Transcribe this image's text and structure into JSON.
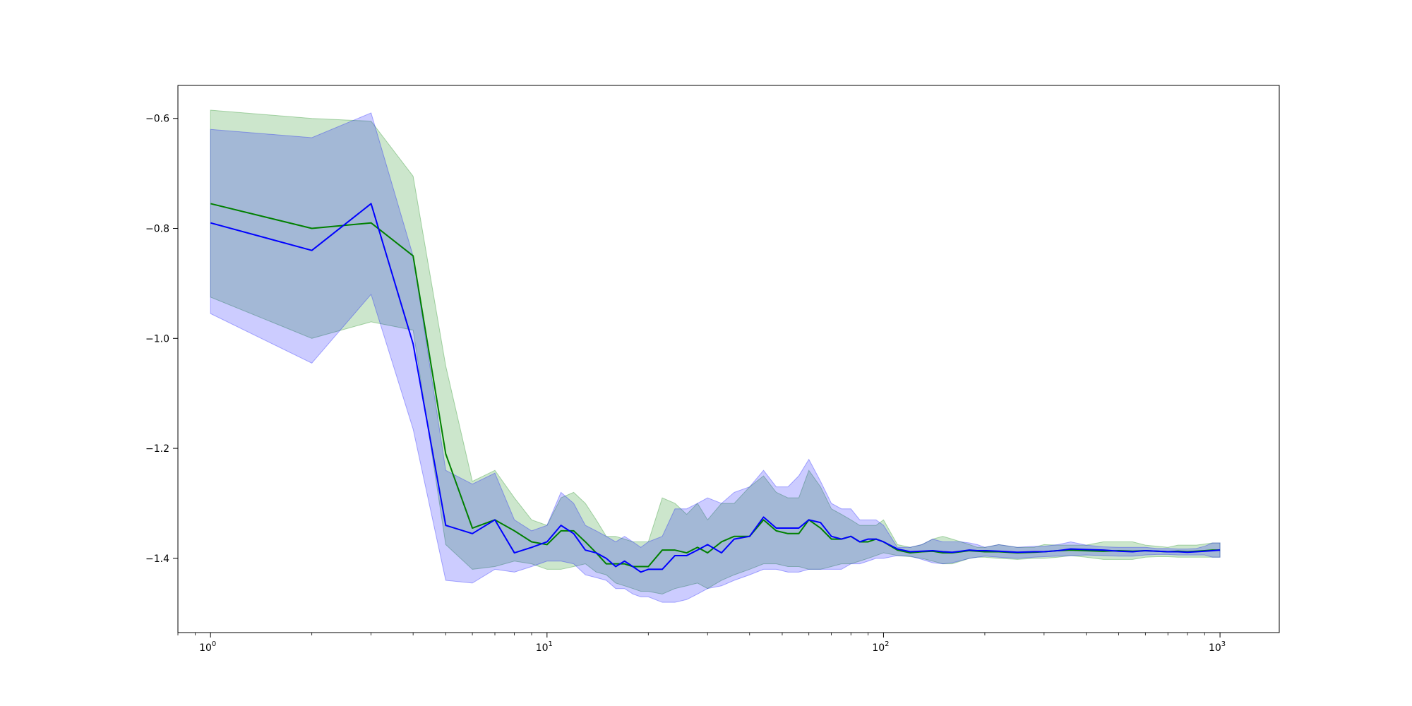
{
  "chart_data": {
    "type": "line",
    "title": "",
    "xlabel": "",
    "ylabel": "",
    "xscale": "log",
    "xlim": [
      0.8,
      1500
    ],
    "ylim": [
      -1.535,
      -0.54
    ],
    "grid": false,
    "xticks": [
      {
        "value": 1,
        "base": "10",
        "exp": "0"
      },
      {
        "value": 10,
        "base": "10",
        "exp": "1"
      },
      {
        "value": 100,
        "base": "10",
        "exp": "2"
      },
      {
        "value": 1000,
        "base": "10",
        "exp": "3"
      }
    ],
    "yticks": [
      {
        "value": -0.6,
        "label": "−0.6"
      },
      {
        "value": -0.8,
        "label": "−0.8"
      },
      {
        "value": -1.0,
        "label": "−1.0"
      },
      {
        "value": -1.2,
        "label": "−1.2"
      },
      {
        "value": -1.4,
        "label": "−1.4"
      }
    ],
    "series": [
      {
        "color": "#008000",
        "band_color": "#008000",
        "band_opacity": 0.2,
        "x": [
          1,
          2,
          3,
          4,
          5,
          6,
          7,
          8,
          9,
          10,
          11,
          12,
          13,
          14,
          15,
          16,
          17,
          18,
          19,
          20,
          22,
          24,
          26,
          28,
          30,
          33,
          36,
          40,
          44,
          48,
          52,
          56,
          60,
          65,
          70,
          75,
          80,
          85,
          90,
          95,
          100,
          110,
          120,
          130,
          140,
          150,
          160,
          170,
          180,
          190,
          200,
          220,
          250,
          280,
          300,
          330,
          360,
          400,
          450,
          500,
          550,
          600,
          650,
          700,
          750,
          800,
          850,
          900,
          950,
          1000
        ],
        "y": [
          -0.755,
          -0.8,
          -0.79,
          -0.85,
          -1.21,
          -1.345,
          -1.33,
          -1.35,
          -1.37,
          -1.375,
          -1.35,
          -1.35,
          -1.37,
          -1.39,
          -1.41,
          -1.41,
          -1.41,
          -1.415,
          -1.415,
          -1.415,
          -1.385,
          -1.385,
          -1.39,
          -1.38,
          -1.39,
          -1.37,
          -1.36,
          -1.36,
          -1.33,
          -1.35,
          -1.355,
          -1.355,
          -1.33,
          -1.345,
          -1.365,
          -1.365,
          -1.36,
          -1.37,
          -1.37,
          -1.365,
          -1.37,
          -1.385,
          -1.39,
          -1.388,
          -1.387,
          -1.39,
          -1.39,
          -1.388,
          -1.386,
          -1.387,
          -1.388,
          -1.388,
          -1.39,
          -1.389,
          -1.388,
          -1.386,
          -1.385,
          -1.386,
          -1.387,
          -1.386,
          -1.387,
          -1.386,
          -1.387,
          -1.388,
          -1.387,
          -1.388,
          -1.387,
          -1.386,
          -1.385,
          -1.385
        ],
        "y_upper": [
          -0.585,
          -0.6,
          -0.605,
          -0.705,
          -1.05,
          -1.26,
          -1.24,
          -1.29,
          -1.33,
          -1.34,
          -1.29,
          -1.28,
          -1.3,
          -1.33,
          -1.36,
          -1.36,
          -1.365,
          -1.37,
          -1.37,
          -1.37,
          -1.29,
          -1.3,
          -1.32,
          -1.3,
          -1.33,
          -1.3,
          -1.3,
          -1.27,
          -1.25,
          -1.28,
          -1.29,
          -1.29,
          -1.24,
          -1.27,
          -1.31,
          -1.32,
          -1.33,
          -1.34,
          -1.34,
          -1.34,
          -1.33,
          -1.375,
          -1.38,
          -1.375,
          -1.365,
          -1.36,
          -1.365,
          -1.37,
          -1.375,
          -1.38,
          -1.38,
          -1.375,
          -1.38,
          -1.38,
          -1.375,
          -1.376,
          -1.376,
          -1.376,
          -1.37,
          -1.37,
          -1.37,
          -1.376,
          -1.378,
          -1.38,
          -1.376,
          -1.376,
          -1.376,
          -1.374,
          -1.372,
          -1.372
        ],
        "y_lower": [
          -0.925,
          -1.0,
          -0.97,
          -0.985,
          -1.375,
          -1.42,
          -1.415,
          -1.405,
          -1.41,
          -1.42,
          -1.42,
          -1.415,
          -1.41,
          -1.425,
          -1.43,
          -1.445,
          -1.45,
          -1.455,
          -1.46,
          -1.46,
          -1.465,
          -1.455,
          -1.45,
          -1.445,
          -1.455,
          -1.44,
          -1.43,
          -1.42,
          -1.41,
          -1.41,
          -1.415,
          -1.415,
          -1.42,
          -1.42,
          -1.415,
          -1.41,
          -1.41,
          -1.405,
          -1.4,
          -1.395,
          -1.39,
          -1.395,
          -1.397,
          -1.4,
          -1.405,
          -1.41,
          -1.41,
          -1.405,
          -1.4,
          -1.398,
          -1.398,
          -1.4,
          -1.402,
          -1.4,
          -1.4,
          -1.398,
          -1.395,
          -1.398,
          -1.402,
          -1.402,
          -1.402,
          -1.398,
          -1.397,
          -1.397,
          -1.398,
          -1.398,
          -1.398,
          -1.398,
          -1.398,
          -1.398
        ]
      },
      {
        "color": "#0000ff",
        "band_color": "#0000ff",
        "band_opacity": 0.2,
        "x": [
          1,
          2,
          3,
          4,
          5,
          6,
          7,
          8,
          9,
          10,
          11,
          12,
          13,
          14,
          15,
          16,
          17,
          18,
          19,
          20,
          22,
          24,
          26,
          28,
          30,
          33,
          36,
          40,
          44,
          48,
          52,
          56,
          60,
          65,
          70,
          75,
          80,
          85,
          90,
          95,
          100,
          110,
          120,
          130,
          140,
          150,
          160,
          170,
          180,
          190,
          200,
          220,
          250,
          280,
          300,
          330,
          360,
          400,
          450,
          500,
          550,
          600,
          650,
          700,
          750,
          800,
          850,
          900,
          950,
          1000
        ],
        "y": [
          -0.79,
          -0.84,
          -0.755,
          -1.01,
          -1.34,
          -1.355,
          -1.33,
          -1.39,
          -1.38,
          -1.37,
          -1.34,
          -1.355,
          -1.385,
          -1.39,
          -1.4,
          -1.415,
          -1.405,
          -1.415,
          -1.425,
          -1.42,
          -1.42,
          -1.395,
          -1.395,
          -1.385,
          -1.375,
          -1.39,
          -1.365,
          -1.36,
          -1.325,
          -1.345,
          -1.345,
          -1.345,
          -1.33,
          -1.335,
          -1.36,
          -1.365,
          -1.36,
          -1.37,
          -1.365,
          -1.365,
          -1.37,
          -1.383,
          -1.388,
          -1.387,
          -1.386,
          -1.388,
          -1.389,
          -1.387,
          -1.385,
          -1.386,
          -1.386,
          -1.387,
          -1.389,
          -1.388,
          -1.388,
          -1.386,
          -1.383,
          -1.384,
          -1.385,
          -1.387,
          -1.388,
          -1.386,
          -1.387,
          -1.388,
          -1.388,
          -1.389,
          -1.388,
          -1.387,
          -1.386,
          -1.385
        ],
        "y_upper": [
          -0.62,
          -0.635,
          -0.59,
          -0.85,
          -1.24,
          -1.265,
          -1.245,
          -1.33,
          -1.35,
          -1.34,
          -1.28,
          -1.3,
          -1.34,
          -1.35,
          -1.36,
          -1.37,
          -1.36,
          -1.37,
          -1.38,
          -1.37,
          -1.36,
          -1.31,
          -1.31,
          -1.3,
          -1.29,
          -1.3,
          -1.28,
          -1.27,
          -1.24,
          -1.27,
          -1.27,
          -1.25,
          -1.22,
          -1.26,
          -1.3,
          -1.31,
          -1.31,
          -1.33,
          -1.33,
          -1.33,
          -1.34,
          -1.38,
          -1.38,
          -1.375,
          -1.365,
          -1.37,
          -1.37,
          -1.37,
          -1.372,
          -1.375,
          -1.38,
          -1.375,
          -1.38,
          -1.378,
          -1.378,
          -1.375,
          -1.37,
          -1.376,
          -1.379,
          -1.38,
          -1.38,
          -1.38,
          -1.382,
          -1.382,
          -1.383,
          -1.383,
          -1.382,
          -1.378,
          -1.372,
          -1.372
        ],
        "y_lower": [
          -0.955,
          -1.045,
          -0.92,
          -1.165,
          -1.44,
          -1.445,
          -1.42,
          -1.425,
          -1.415,
          -1.405,
          -1.405,
          -1.41,
          -1.43,
          -1.435,
          -1.44,
          -1.455,
          -1.455,
          -1.465,
          -1.47,
          -1.47,
          -1.48,
          -1.48,
          -1.475,
          -1.465,
          -1.455,
          -1.45,
          -1.44,
          -1.43,
          -1.42,
          -1.42,
          -1.425,
          -1.425,
          -1.42,
          -1.42,
          -1.42,
          -1.42,
          -1.41,
          -1.41,
          -1.405,
          -1.4,
          -1.4,
          -1.395,
          -1.396,
          -1.402,
          -1.408,
          -1.41,
          -1.408,
          -1.404,
          -1.4,
          -1.398,
          -1.396,
          -1.398,
          -1.4,
          -1.398,
          -1.397,
          -1.396,
          -1.395,
          -1.394,
          -1.395,
          -1.396,
          -1.396,
          -1.394,
          -1.393,
          -1.393,
          -1.394,
          -1.394,
          -1.394,
          -1.394,
          -1.398,
          -1.398
        ]
      }
    ]
  }
}
